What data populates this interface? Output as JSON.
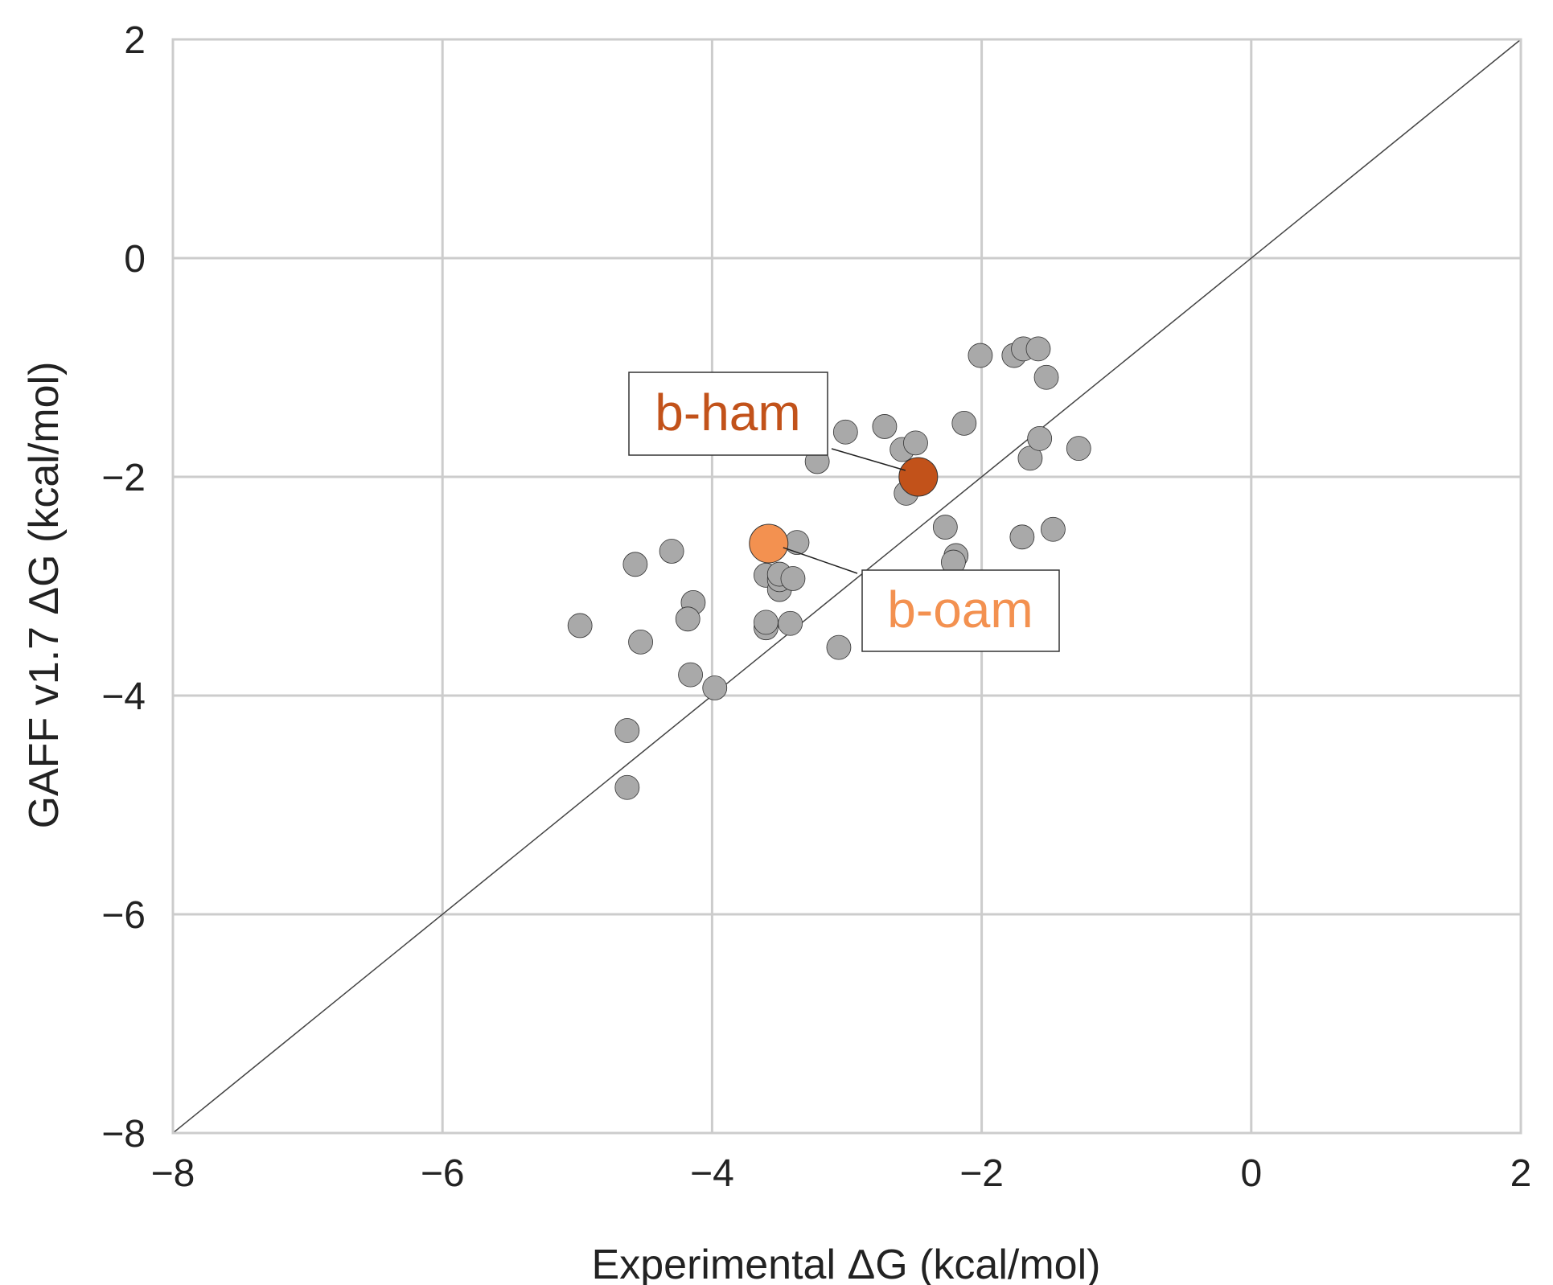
{
  "chart_data": {
    "type": "scatter",
    "xlabel": "Experimental ΔG (kcal/mol)",
    "ylabel": "GAFF v1.7 ΔG (kcal/mol)",
    "xlim": [
      -8,
      2
    ],
    "ylim": [
      -8,
      2
    ],
    "xticks": [
      -8,
      -6,
      -4,
      -2,
      0,
      2
    ],
    "yticks": [
      -8,
      -6,
      -4,
      -2,
      0,
      2
    ],
    "xtick_labels": [
      "−8",
      "−6",
      "−4",
      "−2",
      "0",
      "2"
    ],
    "ytick_labels": [
      "−8",
      "−6",
      "−4",
      "−2",
      "0",
      "2"
    ],
    "grid": true,
    "identity_line": true,
    "colors": {
      "points": "#a9a9a9",
      "b_ham": "#c2521a",
      "b_oam": "#f39150",
      "grid": "#cccccc",
      "text": "#222222"
    },
    "points": [
      [
        -4.98,
        -3.36
      ],
      [
        -4.57,
        -2.8
      ],
      [
        -4.53,
        -3.51
      ],
      [
        -4.3,
        -2.68
      ],
      [
        -4.63,
        -4.32
      ],
      [
        -4.63,
        -4.84
      ],
      [
        -4.14,
        -3.15
      ],
      [
        -4.18,
        -3.3
      ],
      [
        -4.16,
        -3.81
      ],
      [
        -3.98,
        -3.93
      ],
      [
        -3.6,
        -2.9
      ],
      [
        -3.6,
        -3.38
      ],
      [
        -3.6,
        -3.33
      ],
      [
        -3.5,
        -3.03
      ],
      [
        -3.5,
        -2.94
      ],
      [
        -3.5,
        -2.89
      ],
      [
        -3.42,
        -3.34
      ],
      [
        -3.4,
        -2.93
      ],
      [
        -3.37,
        -2.6
      ],
      [
        -3.22,
        -1.86
      ],
      [
        -3.06,
        -3.56
      ],
      [
        -3.01,
        -1.59
      ],
      [
        -2.72,
        -1.54
      ],
      [
        -2.59,
        -1.75
      ],
      [
        -2.49,
        -1.69
      ],
      [
        -2.56,
        -2.15
      ],
      [
        -2.5,
        -3.08
      ],
      [
        -2.27,
        -2.46
      ],
      [
        -2.19,
        -2.72
      ],
      [
        -2.21,
        -2.78
      ],
      [
        -2.13,
        -1.51
      ],
      [
        -2.01,
        -0.89
      ],
      [
        -1.76,
        -0.89
      ],
      [
        -1.69,
        -0.83
      ],
      [
        -1.58,
        -0.83
      ],
      [
        -1.52,
        -1.09
      ],
      [
        -1.7,
        -2.55
      ],
      [
        -1.64,
        -1.83
      ],
      [
        -1.57,
        -1.65
      ],
      [
        -1.47,
        -2.48
      ],
      [
        -1.28,
        -1.74
      ]
    ],
    "highlighted": [
      {
        "label": "b-ham",
        "x": -2.47,
        "y": -2.0
      },
      {
        "label": "b-oam",
        "x": -3.58,
        "y": -2.61
      }
    ]
  }
}
